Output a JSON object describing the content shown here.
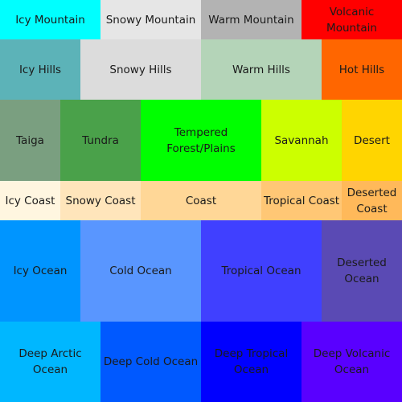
{
  "rows": [
    [
      {
        "label": "Icy Mountain",
        "color": "#00ffff"
      },
      {
        "label": "Snowy Mountain",
        "color": "#e6e6e6"
      },
      {
        "label": "Warm Mountain",
        "color": "#b3b3b3"
      },
      {
        "label": "Volcanic Mountain",
        "color": "#ff0000"
      }
    ],
    [
      {
        "label": "Icy Hills",
        "color": "#5cb3b8"
      },
      {
        "label": "Snowy Hills",
        "color": "#dcdcdc"
      },
      {
        "label": "Warm Hills",
        "color": "#b4d4b8"
      },
      {
        "label": "Hot Hills",
        "color": "#ff6600"
      }
    ],
    [
      {
        "label": "Taiga",
        "color": "#7a9f80"
      },
      {
        "label": "Tundra",
        "color": "#4aa14a"
      },
      {
        "label": "Tempered Forest/Plains",
        "color": "#00ff00"
      },
      {
        "label": "Savannah",
        "color": "#ccff00"
      },
      {
        "label": "Desert",
        "color": "#ffd500"
      }
    ],
    [
      {
        "label": "Icy Coast",
        "color": "#fff6e0"
      },
      {
        "label": "Snowy Coast",
        "color": "#ffe5bb"
      },
      {
        "label": "Coast",
        "color": "#ffd797"
      },
      {
        "label": "Tropical Coast",
        "color": "#ffc775"
      },
      {
        "label": "Deserted Coast",
        "color": "#ffb95a"
      }
    ],
    [
      {
        "label": "Icy Ocean",
        "color": "#0095ff"
      },
      {
        "label": "Cold Ocean",
        "color": "#5996ff"
      },
      {
        "label": "Tropical Ocean",
        "color": "#4040ff"
      },
      {
        "label": "Deserted Ocean",
        "color": "#5a4ab4"
      }
    ],
    [
      {
        "label": "Deep Arctic Ocean",
        "color": "#00b7ff"
      },
      {
        "label": "Deep Cold Ocean",
        "color": "#0059ff"
      },
      {
        "label": "Deep Tropical Ocean",
        "color": "#0000ff"
      },
      {
        "label": "Deep Volcanic Ocean",
        "color": "#5900ff"
      }
    ]
  ]
}
